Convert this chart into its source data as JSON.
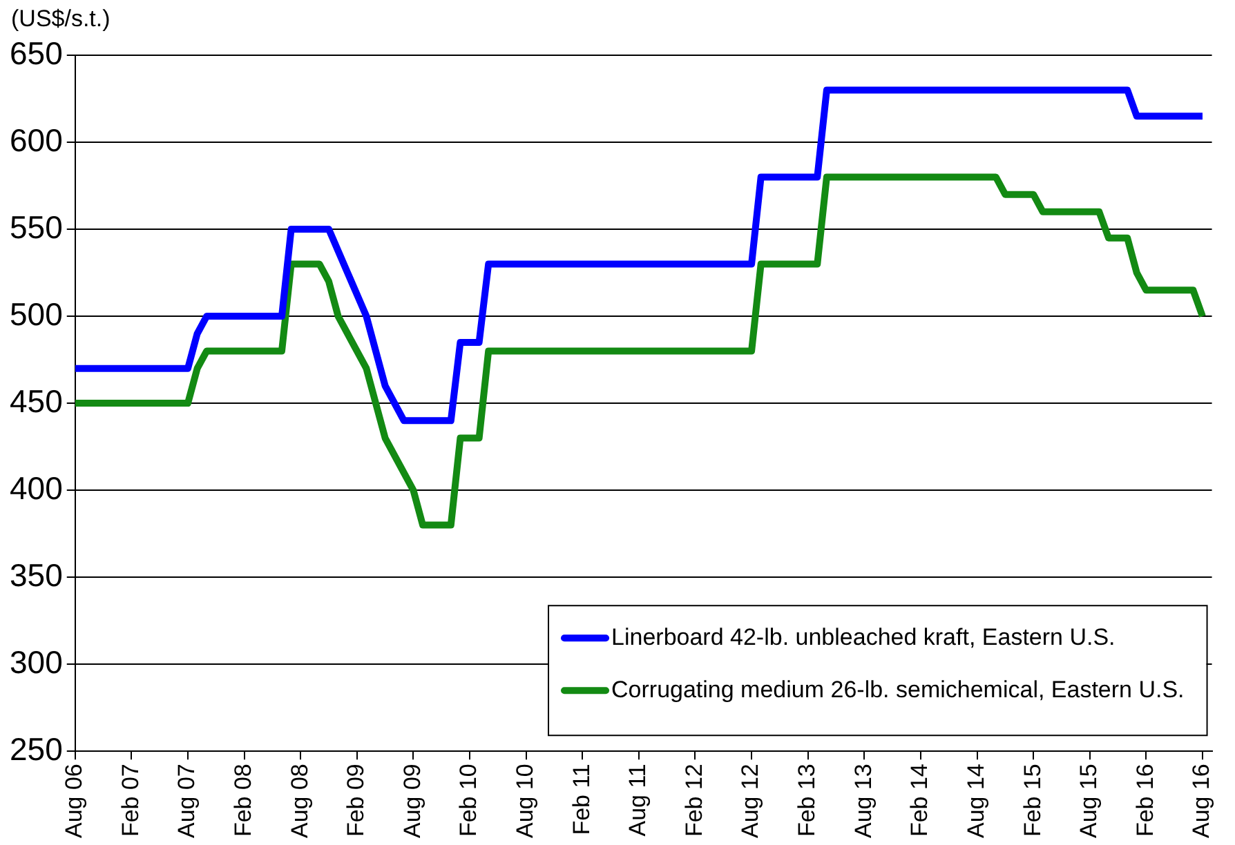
{
  "chart_data": {
    "type": "line",
    "ylabel": "(US$/s.t.)",
    "series": [
      {
        "name": "Linerboard 42-lb. unbleached kraft, Eastern U.S.",
        "color": "#0000ff",
        "x": [
          "2006-08",
          "2007-08",
          "2007-09",
          "2007-10",
          "2008-06",
          "2008-07",
          "2008-11",
          "2009-03",
          "2009-05",
          "2009-07",
          "2009-12",
          "2010-01",
          "2010-03",
          "2010-04",
          "2012-08",
          "2012-09",
          "2013-03",
          "2013-04",
          "2015-12",
          "2016-01",
          "2016-08"
        ],
        "values": [
          470,
          470,
          490,
          500,
          500,
          550,
          550,
          500,
          460,
          440,
          440,
          485,
          485,
          530,
          530,
          580,
          580,
          630,
          630,
          615,
          615
        ]
      },
      {
        "name": "Corrugating medium 26-lb. semichemical, Eastern U.S.",
        "color": "#138a13",
        "x": [
          "2006-08",
          "2007-08",
          "2007-09",
          "2007-10",
          "2008-06",
          "2008-07",
          "2008-10",
          "2008-11",
          "2008-12",
          "2009-03",
          "2009-05",
          "2009-08",
          "2009-09",
          "2009-12",
          "2010-01",
          "2010-03",
          "2010-04",
          "2012-08",
          "2012-09",
          "2013-03",
          "2013-04",
          "2014-10",
          "2014-11",
          "2015-02",
          "2015-03",
          "2015-09",
          "2015-10",
          "2015-12",
          "2016-01",
          "2016-02",
          "2016-07",
          "2016-08"
        ],
        "values": [
          450,
          450,
          470,
          480,
          480,
          530,
          530,
          520,
          500,
          470,
          430,
          400,
          380,
          380,
          430,
          430,
          480,
          480,
          530,
          530,
          580,
          580,
          570,
          570,
          560,
          560,
          545,
          545,
          525,
          515,
          515,
          500
        ]
      }
    ],
    "xlim": [
      "2006-08",
      "2016-09"
    ],
    "xticks": [
      {
        "value": "2006-08",
        "label": "Aug 06"
      },
      {
        "value": "2007-02",
        "label": "Feb 07"
      },
      {
        "value": "2007-08",
        "label": "Aug 07"
      },
      {
        "value": "2008-02",
        "label": "Feb 08"
      },
      {
        "value": "2008-08",
        "label": "Aug 08"
      },
      {
        "value": "2009-02",
        "label": "Feb 09"
      },
      {
        "value": "2009-08",
        "label": "Aug 09"
      },
      {
        "value": "2010-02",
        "label": "Feb 10"
      },
      {
        "value": "2010-08",
        "label": "Aug 10"
      },
      {
        "value": "2011-02",
        "label": "Feb 11"
      },
      {
        "value": "2011-08",
        "label": "Aug 11"
      },
      {
        "value": "2012-02",
        "label": "Feb 12"
      },
      {
        "value": "2012-08",
        "label": "Aug 12"
      },
      {
        "value": "2013-02",
        "label": "Feb 13"
      },
      {
        "value": "2013-08",
        "label": "Aug 13"
      },
      {
        "value": "2014-02",
        "label": "Feb 14"
      },
      {
        "value": "2014-08",
        "label": "Aug 14"
      },
      {
        "value": "2015-02",
        "label": "Feb 15"
      },
      {
        "value": "2015-08",
        "label": "Aug 15"
      },
      {
        "value": "2016-02",
        "label": "Feb 16"
      },
      {
        "value": "2016-08",
        "label": "Aug 16"
      }
    ],
    "ylim": [
      250,
      650
    ],
    "yticks": [
      250,
      300,
      350,
      400,
      450,
      500,
      550,
      600,
      650
    ],
    "grid": "y",
    "legend": "bottom right",
    "marker": "none",
    "line_style": "solid"
  }
}
